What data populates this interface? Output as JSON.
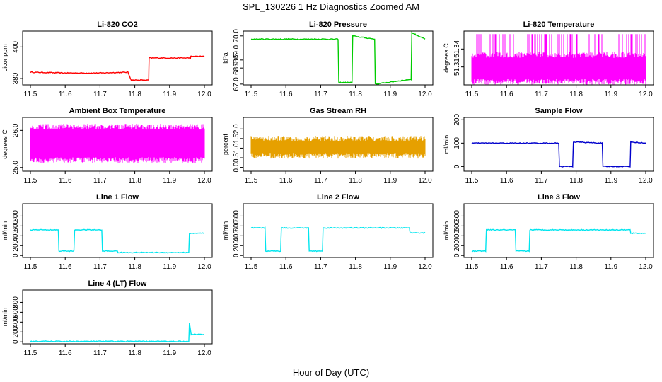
{
  "figure": {
    "suptitle": "SPL_130226  1 Hz Diagnostics Zoomed AM",
    "xlabel": "Hour of Day (UTC)"
  },
  "chart_data": [
    {
      "type": "line",
      "title": "Li-820 CO2",
      "ylabel": "Licor ppm",
      "color": "#ff0000",
      "xlim": [
        11.5,
        12.0
      ],
      "ylim": [
        376,
        410
      ],
      "xticks": [
        "11.5",
        "11.6",
        "11.7",
        "11.8",
        "11.9",
        "12.0"
      ],
      "yticks": [
        {
          "v": 380,
          "label": "380"
        },
        {
          "v": 400,
          "label": "400"
        }
      ],
      "series": [
        {
          "x": [
            11.5,
            11.6,
            11.7,
            11.78,
            11.79,
            11.84,
            11.841,
            11.9,
            11.96,
            11.961,
            12.0
          ],
          "y": [
            384,
            383.5,
            383.5,
            384,
            379,
            379,
            393,
            393,
            393,
            394,
            394
          ]
        }
      ]
    },
    {
      "type": "line",
      "title": "Li-820 Pressure",
      "ylabel": "kPa",
      "color": "#00cc00",
      "xlim": [
        11.5,
        12.0
      ],
      "ylim": [
        66.95,
        70.3
      ],
      "xticks": [
        "11.5",
        "11.6",
        "11.7",
        "11.8",
        "11.9",
        "12.0"
      ],
      "yticks": [
        {
          "v": 67.0,
          "label": "67.0"
        },
        {
          "v": 68.0,
          "label": "68.0"
        },
        {
          "v": 68.5,
          "label": "68.5"
        },
        {
          "v": 69.0,
          "label": "69.0"
        },
        {
          "v": 70.0,
          "label": "70.0"
        }
      ],
      "series": [
        {
          "x": [
            11.5,
            11.75,
            11.752,
            11.79,
            11.792,
            11.855,
            11.857,
            11.96,
            11.962,
            12.0
          ],
          "y": [
            69.8,
            69.8,
            67.1,
            67.1,
            70.0,
            69.8,
            67.0,
            67.3,
            70.2,
            69.8
          ]
        }
      ]
    },
    {
      "type": "area",
      "title": "Li-820 Temperature",
      "ylabel": "degrees C",
      "color": "#ff00ff",
      "xlim": [
        11.5,
        12.0
      ],
      "ylim": [
        51.28,
        51.37
      ],
      "xticks": [
        "11.5",
        "11.6",
        "11.7",
        "11.8",
        "11.9",
        "12.0"
      ],
      "yticks": [
        {
          "v": 51.31,
          "label": "51.31"
        },
        {
          "v": 51.34,
          "label": "51.34"
        }
      ],
      "series": [
        {
          "x": [
            11.5,
            12.0
          ],
          "y_low": [
            51.285,
            51.285
          ],
          "y_high": [
            51.33,
            51.33
          ],
          "y_spike": [
            51.365,
            51.365
          ]
        }
      ]
    },
    {
      "type": "area",
      "title": "Ambient Box Temperature",
      "ylabel": "degrees C",
      "color": "#ff00ff",
      "xlim": [
        11.5,
        12.0
      ],
      "ylim": [
        24.9,
        26.35
      ],
      "xticks": [
        "11.5",
        "11.6",
        "11.7",
        "11.8",
        "11.9",
        "12.0"
      ],
      "yticks": [
        {
          "v": 25.0,
          "label": "25.0"
        },
        {
          "v": 26.0,
          "label": "26.0"
        }
      ],
      "series": [
        {
          "x": [
            11.5,
            12.0
          ],
          "y_low": [
            25.2,
            25.2
          ],
          "y_high": [
            26.1,
            26.1
          ]
        }
      ]
    },
    {
      "type": "area",
      "title": "Gas Stream RH",
      "ylabel": "percent",
      "color": "#e6a000",
      "xlim": [
        11.5,
        12.0
      ],
      "ylim": [
        -0.2,
        2.6
      ],
      "xticks": [
        "11.5",
        "11.6",
        "11.7",
        "11.8",
        "11.9",
        "12.0"
      ],
      "yticks": [
        {
          "v": 0.0,
          "label": "0.0"
        },
        {
          "v": 0.5,
          "label": "0.5"
        },
        {
          "v": 1.0,
          "label": "1.0"
        },
        {
          "v": 1.5,
          "label": "1.5"
        },
        {
          "v": 2.0,
          "label": "2.0"
        }
      ],
      "series": [
        {
          "x": [
            11.5,
            12.0
          ],
          "y_low": [
            0.6,
            0.6
          ],
          "y_high": [
            1.5,
            1.5
          ]
        }
      ]
    },
    {
      "type": "line",
      "title": "Sample Flow",
      "ylabel": "ml/min",
      "color": "#0000cc",
      "xlim": [
        11.5,
        12.0
      ],
      "ylim": [
        -20,
        210
      ],
      "xticks": [
        "11.5",
        "11.6",
        "11.7",
        "11.8",
        "11.9",
        "12.0"
      ],
      "yticks": [
        {
          "v": 0,
          "label": "0"
        },
        {
          "v": 100,
          "label": "100"
        },
        {
          "v": 200,
          "label": "200"
        }
      ],
      "series": [
        {
          "x": [
            11.5,
            11.75,
            11.752,
            11.79,
            11.792,
            11.875,
            11.877,
            11.955,
            11.957,
            12.0
          ],
          "y": [
            100,
            100,
            0,
            0,
            105,
            100,
            0,
            0,
            105,
            100
          ]
        }
      ]
    },
    {
      "type": "line",
      "title": "Line 1 Flow",
      "ylabel": "ml/min",
      "color": "#00e5ee",
      "xlim": [
        11.5,
        12.0
      ],
      "ylim": [
        -40,
        1050
      ],
      "xticks": [
        "11.5",
        "11.6",
        "11.7",
        "11.8",
        "11.9",
        "12.0"
      ],
      "yticks": [
        {
          "v": 0,
          "label": "0"
        },
        {
          "v": 200,
          "label": "200"
        },
        {
          "v": 400,
          "label": "400"
        },
        {
          "v": 600,
          "label": "600"
        },
        {
          "v": 800,
          "label": "800"
        }
      ],
      "series": [
        {
          "x": [
            11.5,
            11.58,
            11.582,
            11.625,
            11.627,
            11.705,
            11.707,
            11.75,
            11.752,
            11.955,
            11.957,
            12.0
          ],
          "y": [
            520,
            520,
            90,
            90,
            520,
            520,
            90,
            90,
            60,
            60,
            450,
            450
          ]
        }
      ]
    },
    {
      "type": "line",
      "title": "Line 2 Flow",
      "ylabel": "ml/min",
      "color": "#00e5ee",
      "xlim": [
        11.5,
        12.0
      ],
      "ylim": [
        -40,
        1050
      ],
      "xticks": [
        "11.5",
        "11.6",
        "11.7",
        "11.8",
        "11.9",
        "12.0"
      ],
      "yticks": [
        {
          "v": 0,
          "label": "0"
        },
        {
          "v": 200,
          "label": "200"
        },
        {
          "v": 400,
          "label": "400"
        },
        {
          "v": 600,
          "label": "600"
        },
        {
          "v": 800,
          "label": "800"
        }
      ],
      "series": [
        {
          "x": [
            11.5,
            11.54,
            11.542,
            11.585,
            11.587,
            11.665,
            11.667,
            11.705,
            11.707,
            11.955,
            11.957,
            12.0
          ],
          "y": [
            560,
            560,
            90,
            90,
            560,
            560,
            90,
            90,
            560,
            560,
            460,
            460
          ]
        }
      ]
    },
    {
      "type": "line",
      "title": "Line 3 Flow",
      "ylabel": "ml/min",
      "color": "#00e5ee",
      "xlim": [
        11.5,
        12.0
      ],
      "ylim": [
        -40,
        1050
      ],
      "xticks": [
        "11.5",
        "11.6",
        "11.7",
        "11.8",
        "11.9",
        "12.0"
      ],
      "yticks": [
        {
          "v": 0,
          "label": "0"
        },
        {
          "v": 200,
          "label": "200"
        },
        {
          "v": 400,
          "label": "400"
        },
        {
          "v": 600,
          "label": "600"
        },
        {
          "v": 800,
          "label": "800"
        }
      ],
      "series": [
        {
          "x": [
            11.5,
            11.54,
            11.542,
            11.625,
            11.627,
            11.665,
            11.667,
            11.955,
            11.957,
            12.0
          ],
          "y": [
            90,
            90,
            520,
            520,
            90,
            90,
            520,
            520,
            450,
            450
          ]
        }
      ]
    },
    {
      "type": "line",
      "title": "Line 4 (LT) Flow",
      "ylabel": "ml/min",
      "color": "#00e5ee",
      "xlim": [
        11.5,
        12.0
      ],
      "ylim": [
        -40,
        1050
      ],
      "xticks": [
        "11.5",
        "11.6",
        "11.7",
        "11.8",
        "11.9",
        "12.0"
      ],
      "yticks": [
        {
          "v": 0,
          "label": "0"
        },
        {
          "v": 200,
          "label": "200"
        },
        {
          "v": 400,
          "label": "400"
        },
        {
          "v": 600,
          "label": "600"
        },
        {
          "v": 800,
          "label": "800"
        }
      ],
      "series": [
        {
          "x": [
            11.5,
            11.955,
            11.957,
            11.962,
            11.965,
            12.0
          ],
          "y": [
            10,
            10,
            380,
            150,
            150,
            150
          ]
        }
      ]
    }
  ]
}
